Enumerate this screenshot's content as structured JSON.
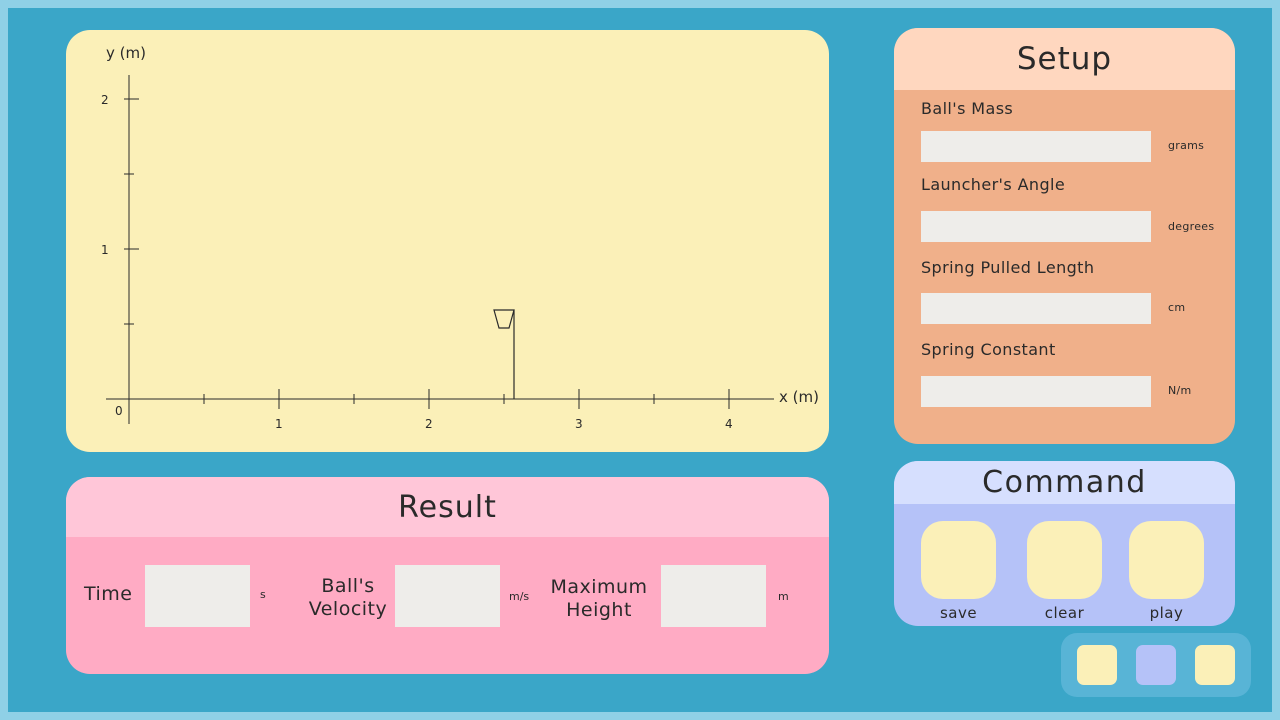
{
  "plot": {
    "y_label": "y (m)",
    "x_label": "x (m)",
    "origin_label": "0",
    "y_ticks": [
      "1",
      "2"
    ],
    "x_ticks": [
      "1",
      "2",
      "3",
      "4"
    ],
    "x_range": [
      0,
      4.5
    ],
    "y_range": [
      0,
      2.1
    ],
    "target_basket_x": 2.5,
    "target_basket_height": 0.6
  },
  "result": {
    "title": "Result",
    "time_label": "Time",
    "time_value": "",
    "time_unit": "s",
    "velocity_label_line1": "Ball's",
    "velocity_label_line2": "Velocity",
    "velocity_value": "",
    "velocity_unit": "m/s",
    "height_label_line1": "Maximum",
    "height_label_line2": "Height",
    "height_value": "",
    "height_unit": "m"
  },
  "setup": {
    "title": "Setup",
    "fields": [
      {
        "label": "Ball's Mass",
        "value": "",
        "unit": "grams"
      },
      {
        "label": "Launcher's Angle",
        "value": "",
        "unit": "degrees"
      },
      {
        "label": "Spring Pulled Length",
        "value": "",
        "unit": "cm"
      },
      {
        "label": "Spring Constant",
        "value": "",
        "unit": "N/m"
      }
    ]
  },
  "command": {
    "title": "Command",
    "save_label": "save",
    "clear_label": "clear",
    "play_label": "play"
  },
  "colors": {
    "background": "#3aa6c8",
    "plot_bg": "#fbf0b8",
    "result_bg": "#ffabc4",
    "setup_bg": "#f0b08a",
    "command_bg": "#b5c2f8"
  }
}
